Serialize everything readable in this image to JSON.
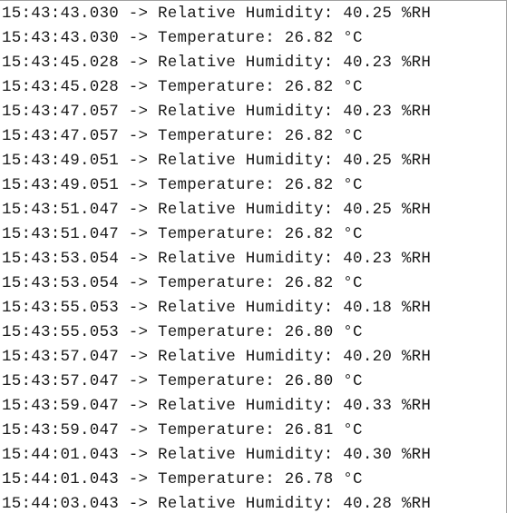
{
  "serial_monitor": {
    "lines": [
      "15:43:43.030 -> Relative Humidity: 40.25 %RH",
      "15:43:43.030 -> Temperature: 26.82 °C",
      "15:43:45.028 -> Relative Humidity: 40.23 %RH",
      "15:43:45.028 -> Temperature: 26.82 °C",
      "15:43:47.057 -> Relative Humidity: 40.23 %RH",
      "15:43:47.057 -> Temperature: 26.82 °C",
      "15:43:49.051 -> Relative Humidity: 40.25 %RH",
      "15:43:49.051 -> Temperature: 26.82 °C",
      "15:43:51.047 -> Relative Humidity: 40.25 %RH",
      "15:43:51.047 -> Temperature: 26.82 °C",
      "15:43:53.054 -> Relative Humidity: 40.23 %RH",
      "15:43:53.054 -> Temperature: 26.82 °C",
      "15:43:55.053 -> Relative Humidity: 40.18 %RH",
      "15:43:55.053 -> Temperature: 26.80 °C",
      "15:43:57.047 -> Relative Humidity: 40.20 %RH",
      "15:43:57.047 -> Temperature: 26.80 °C",
      "15:43:59.047 -> Relative Humidity: 40.33 %RH",
      "15:43:59.047 -> Temperature: 26.81 °C",
      "15:44:01.043 -> Relative Humidity: 40.30 %RH",
      "15:44:01.043 -> Temperature: 26.78 °C",
      "15:44:03.043 -> Relative Humidity: 40.28 %RH"
    ]
  }
}
